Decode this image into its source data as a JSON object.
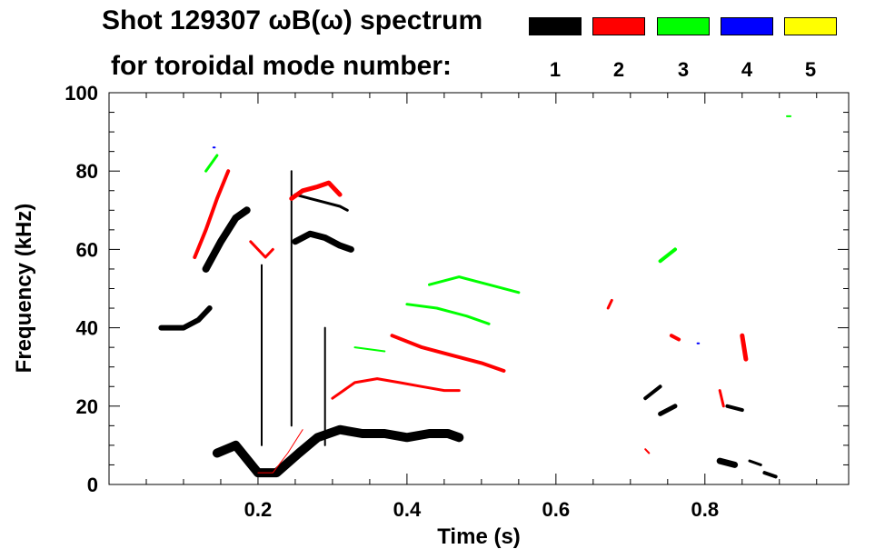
{
  "title": "Shot 129307 ωB(ω) spectrum",
  "subtitle": "for toroidal mode number:",
  "chart_data": {
    "type": "scatter",
    "title": "Shot 129307 ωB(ω) spectrum",
    "subtitle": "for toroidal mode number:",
    "xlabel": "Time (s)",
    "ylabel": "Frequency (kHz)",
    "xlim": [
      0.0,
      0.993
    ],
    "ylim": [
      0,
      100
    ],
    "xticks": [
      0.2,
      0.4,
      0.6,
      0.8
    ],
    "xtick_labels": [
      "0.2",
      "0.4",
      "0.6",
      "0.8"
    ],
    "yticks": [
      0,
      20,
      40,
      60,
      80,
      100
    ],
    "ytick_labels": [
      "0",
      "20",
      "40",
      "60",
      "80",
      "100"
    ],
    "legend": [
      {
        "label": "1",
        "color": "#000000"
      },
      {
        "label": "2",
        "color": "#ff0000"
      },
      {
        "label": "3",
        "color": "#00ff00"
      },
      {
        "label": "4",
        "color": "#0000ff"
      },
      {
        "label": "5",
        "color": "#ffff00"
      }
    ],
    "series": [
      {
        "name": "n=1",
        "color": "#000000",
        "features": [
          {
            "t": [
              0.07,
              0.08,
              0.1,
              0.12,
              0.135
            ],
            "f": [
              40,
              40,
              40,
              42,
              45
            ],
            "w": 6
          },
          {
            "t": [
              0.13,
              0.15,
              0.17,
              0.185
            ],
            "f": [
              55,
              62,
              68,
              70
            ],
            "w": 8
          },
          {
            "t": [
              0.145,
              0.17,
              0.2,
              0.225,
              0.255,
              0.28,
              0.31,
              0.34,
              0.37,
              0.4,
              0.43,
              0.455,
              0.47
            ],
            "f": [
              8,
              10,
              3,
              3,
              8,
              12,
              14,
              13,
              13,
              12,
              13,
              13,
              12
            ],
            "w": 10
          },
          {
            "t": [
              0.25,
              0.27,
              0.29,
              0.31,
              0.325
            ],
            "f": [
              62,
              64,
              63,
              61,
              60
            ],
            "w": 7
          },
          {
            "t": [
              0.25,
              0.27,
              0.29,
              0.31,
              0.32
            ],
            "f": [
              74,
              73,
              72,
              71,
              70
            ],
            "w": 3
          },
          {
            "t": [
              0.205,
              0.205
            ],
            "f": [
              10,
              56
            ],
            "w": 2
          },
          {
            "t": [
              0.245,
              0.245
            ],
            "f": [
              15,
              80
            ],
            "w": 2
          },
          {
            "t": [
              0.29,
              0.29
            ],
            "f": [
              10,
              40
            ],
            "w": 2
          },
          {
            "t": [
              0.74,
              0.76
            ],
            "f": [
              18,
              20
            ],
            "w": 5
          },
          {
            "t": [
              0.72,
              0.74
            ],
            "f": [
              22,
              25
            ],
            "w": 4
          },
          {
            "t": [
              0.82,
              0.84
            ],
            "f": [
              6,
              5
            ],
            "w": 7
          },
          {
            "t": [
              0.83,
              0.85
            ],
            "f": [
              20,
              19
            ],
            "w": 4
          },
          {
            "t": [
              0.88,
              0.895
            ],
            "f": [
              3,
              2
            ],
            "w": 4
          },
          {
            "t": [
              0.86,
              0.875
            ],
            "f": [
              6,
              5
            ],
            "w": 3
          }
        ]
      },
      {
        "name": "n=2",
        "color": "#ff0000",
        "features": [
          {
            "t": [
              0.115,
              0.13,
              0.145,
              0.16
            ],
            "f": [
              58,
              65,
              73,
              80
            ],
            "w": 4
          },
          {
            "t": [
              0.19,
              0.21,
              0.22
            ],
            "f": [
              62,
              58,
              60
            ],
            "w": 3
          },
          {
            "t": [
              0.245,
              0.26,
              0.28,
              0.295,
              0.31
            ],
            "f": [
              73,
              75,
              76,
              77,
              74
            ],
            "w": 5
          },
          {
            "t": [
              0.3,
              0.33,
              0.36,
              0.39,
              0.42,
              0.45,
              0.47
            ],
            "f": [
              22,
              26,
              27,
              26,
              25,
              24,
              24
            ],
            "w": 3
          },
          {
            "t": [
              0.38,
              0.42,
              0.46,
              0.5,
              0.53
            ],
            "f": [
              38,
              35,
              33,
              31,
              29
            ],
            "w": 4
          },
          {
            "t": [
              0.2,
              0.22,
              0.24,
              0.26
            ],
            "f": [
              3,
              3,
              8,
              14
            ],
            "w": 1
          },
          {
            "t": [
              0.67,
              0.675
            ],
            "f": [
              45,
              47
            ],
            "w": 3
          },
          {
            "t": [
              0.755,
              0.765
            ],
            "f": [
              38,
              37
            ],
            "w": 4
          },
          {
            "t": [
              0.85,
              0.855
            ],
            "f": [
              38,
              32
            ],
            "w": 5
          },
          {
            "t": [
              0.82,
              0.825
            ],
            "f": [
              24,
              20
            ],
            "w": 3
          },
          {
            "t": [
              0.72,
              0.725
            ],
            "f": [
              9,
              8
            ],
            "w": 2
          }
        ]
      },
      {
        "name": "n=3",
        "color": "#00ff00",
        "features": [
          {
            "t": [
              0.13,
              0.145
            ],
            "f": [
              80,
              84
            ],
            "w": 3
          },
          {
            "t": [
              0.4,
              0.44,
              0.48,
              0.51
            ],
            "f": [
              46,
              45,
              43,
              41
            ],
            "w": 3
          },
          {
            "t": [
              0.43,
              0.47,
              0.51,
              0.55
            ],
            "f": [
              51,
              53,
              51,
              49
            ],
            "w": 3
          },
          {
            "t": [
              0.33,
              0.37
            ],
            "f": [
              35,
              34
            ],
            "w": 2
          },
          {
            "t": [
              0.74,
              0.76
            ],
            "f": [
              57,
              60
            ],
            "w": 4
          },
          {
            "t": [
              0.91,
              0.915
            ],
            "f": [
              94,
              94
            ],
            "w": 2
          }
        ]
      },
      {
        "name": "n=4",
        "color": "#0000ff",
        "features": [
          {
            "t": [
              0.14,
              0.142
            ],
            "f": [
              86,
              86
            ],
            "w": 2
          },
          {
            "t": [
              0.79,
              0.792
            ],
            "f": [
              36,
              36
            ],
            "w": 2
          }
        ]
      },
      {
        "name": "n=5",
        "color": "#ffff00",
        "features": []
      }
    ]
  }
}
